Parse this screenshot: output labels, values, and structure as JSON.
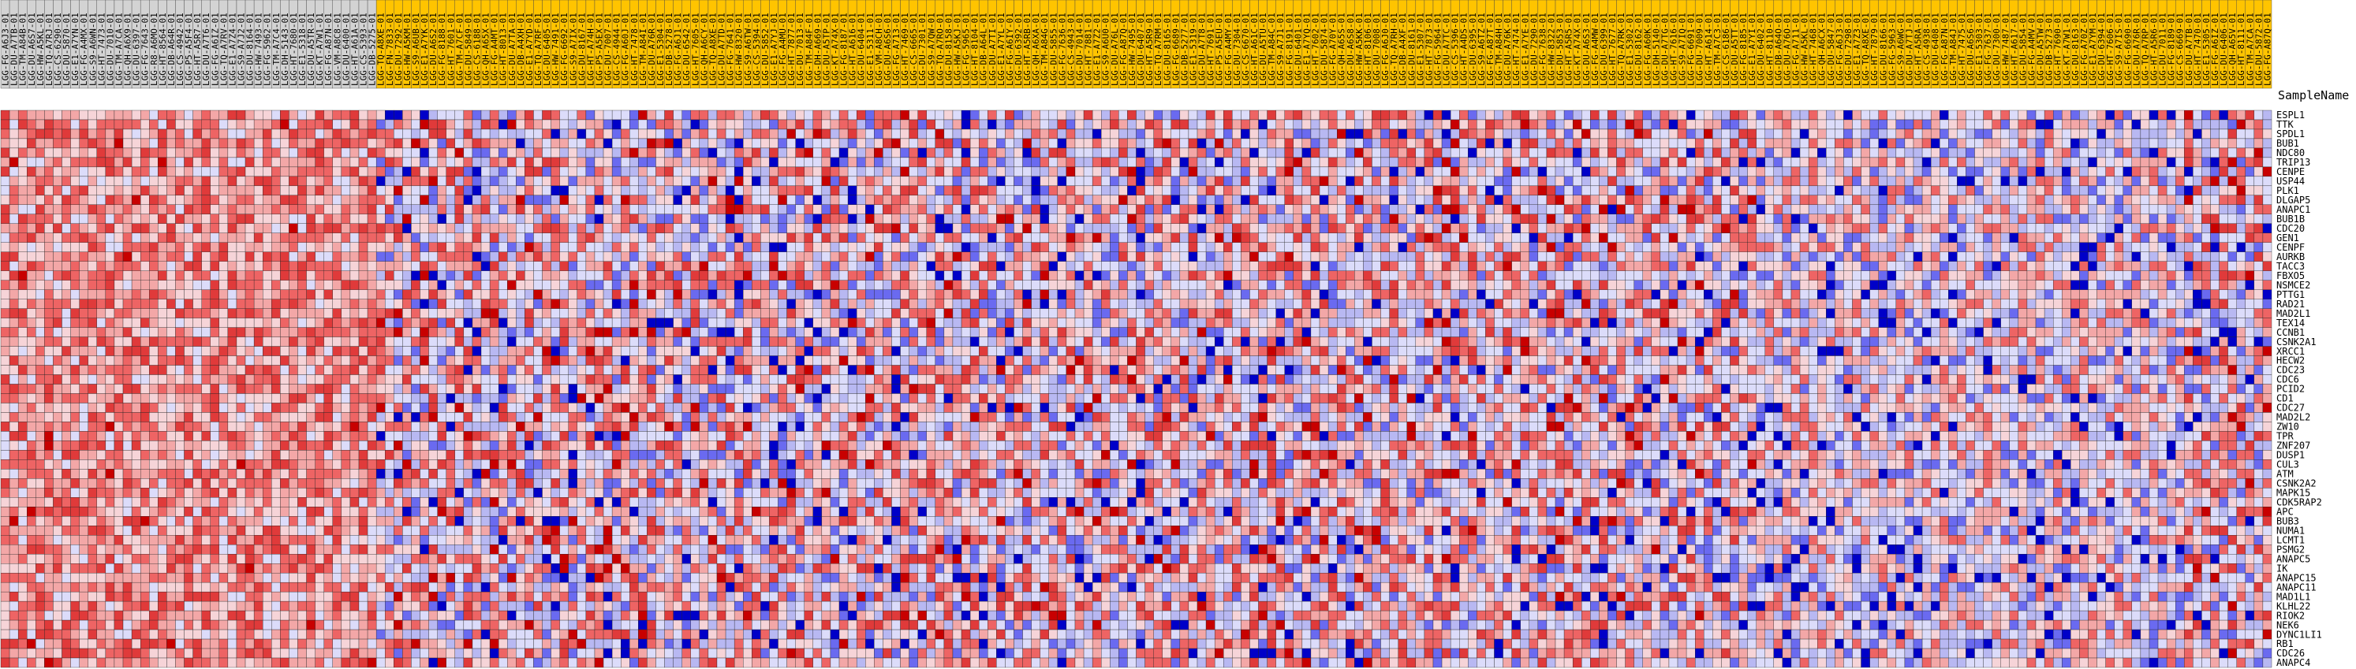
{
  "chart_data": {
    "type": "heatmap",
    "column_header_label": "SampleName",
    "color_scale": {
      "low": "#0000c8",
      "mid_low": "#d2d2f5",
      "mid_high": "#f5c8c8",
      "high": "#d20000"
    },
    "group_colors": {
      "group_a": "#d3d3d3",
      "group_b": "#ffc400"
    },
    "rows": [
      "ESPL1",
      "TTK",
      "SPDL1",
      "BUB1",
      "NDC80",
      "TRIP13",
      "CENPE",
      "USP44",
      "PLK1",
      "DLGAP5",
      "ANAPC1",
      "BUB1B",
      "CDC20",
      "GEN1",
      "CENPF",
      "AURKB",
      "TACC3",
      "FBXO5",
      "NSMCE2",
      "PTTG1",
      "RAD21",
      "MAD2L1",
      "TEX14",
      "CCNB1",
      "CSNK2A1",
      "XRCC1",
      "HECW2",
      "CDC23",
      "CDC6",
      "PCID2",
      "CD1",
      "CDC27",
      "MAD2L2",
      "ZW10",
      "TPR",
      "ZNF207",
      "DUSP1",
      "CUL3",
      "ATM",
      "CSNK2A2",
      "MAPK15",
      "CDK5RAP2",
      "APC",
      "BUB3",
      "NUMA1",
      "LCMT1",
      "PSMG2",
      "ANAPC5",
      "IK",
      "ANAPC15",
      "ANAPC11",
      "MAD1L1",
      "KLHL22",
      "RIOK2",
      "NEK6",
      "DYNC1LI1",
      "RB1",
      "CDC26",
      "ANAPC4"
    ],
    "columns": [
      "LGG-FG-A6J3-01",
      "LGG-DU-A7TB-01",
      "LGG-TM-A84B-01",
      "LGG-DU-A6S7-01",
      "LGG-HW-A5KL-01",
      "LGG-TQ-A7RJ-01",
      "LGG-CS-6290-01",
      "LGG-DU-5870-01",
      "LGG-E1-A7YN-01",
      "LGG-FG-A4MX-01",
      "LGG-S9-A6WN-01",
      "LGG-HT-7473-01",
      "LGG-DU-7010-01",
      "LGG-TM-A7CA-01",
      "LGG-QH-A6X9-01",
      "LGG-DU-6397-01",
      "LGG-FG-7643-01",
      "LGG-R8-A6MO-01",
      "LGG-HT-8564-01",
      "LGG-DB-A64R-01",
      "LGG-CS-4942-01",
      "LGG-P5-A5F4-01",
      "LGG-HT-A5R7-01",
      "LGG-DU-A7T6-01",
      "LGG-FG-A6IZ-01",
      "LGG-TQ-A7RV-01",
      "LGG-E1-A7Z4-01",
      "LGG-S9-A7J2-01",
      "LGG-DU-8164-01",
      "LGG-HW-7493-01",
      "LGG-FG-5962-01",
      "LGG-TM-A7C4-01",
      "LGG-DH-5143-01",
      "LGG-HT-7680-01",
      "LGG-E1-5318-01",
      "LGG-DU-A5TR-01",
      "LGG-KT-A7W1-01",
      "LGG-FG-A87N-01",
      "LGG-VM-A8C8-01",
      "LGG-DU-6400-01",
      "LGG-HT-A61A-01",
      "LGG-CS-5393-01",
      "LGG-DB-5275-01",
      "LGG-TQ-A8XE-01",
      "LGG-FN-7833-01",
      "LGG-DU-7292-01",
      "LGG-HW-A5KM-01",
      "LGG-S9-A6UB-01",
      "LGG-E1-A7YK-01",
      "LGG-DU-A6S2-01",
      "LGG-FG-8188-01",
      "LGG-HT-7601-01",
      "LGG-TM-A7CF-01",
      "LGG-DU-5849-01",
      "LGG-CS-6188-01",
      "LGG-QH-A65X-01",
      "LGG-FG-A4MT-01",
      "LGG-HT-8013-01",
      "LGG-DU-A7TA-01",
      "LGG-DB-A4XH-01",
      "LGG-E1-A7YD-01",
      "LGG-TQ-A7RF-01",
      "LGG-DU-6405-01",
      "LGG-HW-7491-01",
      "LGG-FG-6692-01",
      "LGG-S9-A7IX-01",
      "LGG-DU-8167-01",
      "LGG-HT-A74H-01",
      "LGG-P5-A5EX-01",
      "LGG-DU-7007-01",
      "LGG-CS-4944-01",
      "LGG-FG-A60J-01",
      "LGG-HT-7478-01",
      "LGG-TM-A84I-01",
      "LGG-DU-A76R-01",
      "LGG-E1-5304-01",
      "LGG-DB-5278-01",
      "LGG-FG-A6J1-01",
      "LGG-DU-6542-01",
      "LGG-HT-7605-01",
      "LGG-QH-A6CY-01",
      "LGG-TQ-A8XE-01",
      "LGG-DU-A7TD-01",
      "LGG-FG-7641-01",
      "LGG-HW-8320-01",
      "LGG-S9-A6TW-01",
      "LGG-CS-5394-01",
      "LGG-DU-5852-01",
      "LGG-E1-A7YJ-01",
      "LGG-FG-A4MU-01",
      "LGG-HT-7877-01",
      "LGG-DU-7013-01",
      "LGG-TM-A84F-01",
      "LGG-DH-A669-01",
      "LGG-DU-A5TP-01",
      "LGG-KT-A74X-01",
      "LGG-FG-8187-01",
      "LGG-HT-A616-01",
      "LGG-DU-6404-01",
      "LGG-E1-5311-01",
      "LGG-VM-A8CH-01",
      "LGG-DU-A6S6-01",
      "LGG-FG-A713-01",
      "LGG-HT-7469-01",
      "LGG-CS-6665-01",
      "LGG-DU-7301-01",
      "LGG-S9-A7QW-01",
      "LGG-TQ-A7RO-01",
      "LGG-DU-8158-01",
      "LGG-HW-A5KJ-01",
      "LGG-FG-5965-01",
      "LGG-HT-8104-01",
      "LGG-DB-A64L-01",
      "LGG-DU-A7TI-01",
      "LGG-E1-A7YL-01",
      "LGG-FG-A6IY-01",
      "LGG-DU-6392-01",
      "LGG-HT-A5RB-01",
      "LGG-QH-A6XA-01",
      "LGG-TM-A84G-01",
      "LGG-DU-5855-01",
      "LGG-FG-7636-01",
      "LGG-CS-4943-01",
      "LGG-DU-7014-01",
      "LGG-HT-7881-01",
      "LGG-E1-A7Z2-01",
      "LGG-S9-A6U0-01",
      "LGG-DU-A76L-01",
      "LGG-FG-A87Q-01",
      "LGG-HW-7495-01",
      "LGG-DU-6407-01",
      "LGG-HT-A5R9-01",
      "LGG-TQ-A7RM-01",
      "LGG-DU-8165-01",
      "LGG-FG-6689-01",
      "LGG-DB-5277-01",
      "LGG-E1-5319-01",
      "LGG-DU-A7T8-01",
      "LGG-HT-7691-01",
      "LGG-P5-A5EU-01",
      "LGG-FG-A4MY-01",
      "LGG-DU-7304-01",
      "LGG-CS-6670-01",
      "LGG-HT-A61C-01",
      "LGG-DU-A5TU-01",
      "LGG-TM-A84C-01",
      "LGG-S9-A7J1-01",
      "LGG-FG-8191-01",
      "LGG-DU-6401-01",
      "LGG-E1-A7YQ-01",
      "LGG-HT-7602-01",
      "LGG-DU-5874-01",
      "LGG-FG-A70Y-01",
      "LGG-QH-A65S-01",
      "LGG-DU-A6S8-01",
      "LGG-HW-A5KK-01",
      "LGG-HT-8106-01",
      "LGG-DU-7008-01",
      "LGG-FG-A6J0-01",
      "LGG-TQ-A7RH-01",
      "LGG-DB-A4XF-01",
      "LGG-DU-8161-01",
      "LGG-E1-5307-01",
      "LGG-HT-7873-01",
      "LGG-FG-5964-01",
      "LGG-DU-A7TC-01",
      "LGG-CS-5396-01",
      "LGG-HT-A4DS-01",
      "LGG-DU-6395-01",
      "LGG-S9-A6TZ-01",
      "LGG-FG-A87T-01",
      "LGG-TM-A84H-01",
      "LGG-DU-A76K-01",
      "LGG-HT-7474-01",
      "LGG-E1-A7YE-01",
      "LGG-DU-7290-01",
      "LGG-FG-7638-01",
      "LGG-HW-8322-01",
      "LGG-DU-5853-01",
      "LGG-HT-A5R5-01",
      "LGG-KT-A74X-01",
      "LGG-DU-A6S3-01",
      "LGG-FG-A4MW-01",
      "LGG-DU-6399-01",
      "LGG-HT-7677-01",
      "LGG-TQ-A7RK-01",
      "LGG-E1-5302-01",
      "LGG-DU-8162-01",
      "LGG-FG-A60K-01",
      "LGG-DH-5140-01",
      "LGG-DU-A7TG-01",
      "LGG-HT-7616-01",
      "LGG-S9-A7IQ-01",
      "LGG-FG-6691-01",
      "LGG-DU-7009-01",
      "LGG-HT-A614-01",
      "LGG-TM-A7C3-01",
      "LGG-CS-6186-01",
      "LGG-DU-A5TT-01",
      "LGG-FG-8185-01",
      "LGG-E1-A7YI-01",
      "LGG-DU-6402-01",
      "LGG-HT-8110-01",
      "LGG-DB-A64O-01",
      "LGG-DU-A76O-01",
      "LGG-FG-A711-01",
      "LGG-HW-A5KL-01",
      "LGG-HT-7468-01",
      "LGG-QH-A6CX-01",
      "LGG-DU-5847-01",
      "LGG-FG-A6J3-01",
      "LGG-DU-7298-01",
      "LGG-E1-A7Z3-01",
      "LGG-TQ-A8XE-01",
      "LGG-HT-7879-01",
      "LGG-DU-8166-01",
      "LGG-FG-5963-01",
      "LGG-S9-A6WG-01",
      "LGG-DU-A7TJ-01",
      "LGG-HT-A5RA-01",
      "LGG-CS-4938-01",
      "LGG-DU-6408-01",
      "LGG-FG-A87N-01",
      "LGG-TM-A84J-01",
      "LGG-HT-7475-01",
      "LGG-DU-A6S6-01",
      "LGG-E1-5303-01",
      "LGG-FG-7637-01",
      "LGG-DU-7300-01",
      "LGG-HW-7487-01",
      "LGG-HT-A617-01",
      "LGG-DU-5854-01",
      "LGG-FG-A4MV-01",
      "LGG-DU-A5TW-01",
      "LGG-DB-5273-01",
      "LGG-HT-7690-01",
      "LGG-KT-A7W1-01",
      "LGG-DU-8163-01",
      "LGG-FG-A70Z-01",
      "LGG-E1-A7YM-01",
      "LGG-DU-6394-01",
      "LGG-HT-7606-01",
      "LGG-S9-A7IS-01",
      "LGG-FG-6690-01",
      "LGG-DU-A76R-01",
      "LGG-TQ-A7RP-01",
      "LGG-HT-A5R6-01",
      "LGG-DU-7011-01",
      "LGG-FG-8189-01",
      "LGG-CS-6669-01",
      "LGG-DU-A7TB-01",
      "LGG-HT-7470-01",
      "LGG-E1-5305-01",
      "LGG-FG-A6IZ-01",
      "LGG-DU-6406-01",
      "LGG-QH-A65V-01",
      "LGG-HT-8111-01",
      "LGG-TM-A7CA-01",
      "LGG-DU-5872-01",
      "LGG-FG-A87Q-01"
    ],
    "group_split_index": 43
  }
}
